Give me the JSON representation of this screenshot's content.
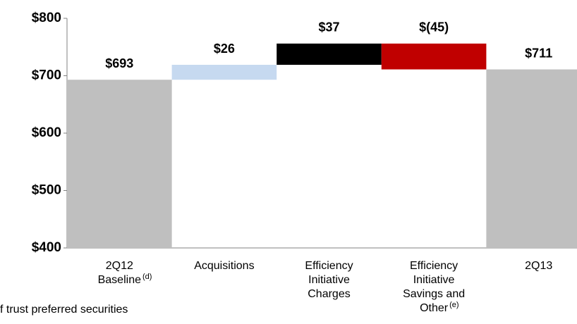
{
  "chart_data": {
    "type": "waterfall",
    "categories": [
      [
        "2Q12",
        "Baseline"
      ],
      [
        "Acquisitions"
      ],
      [
        "Efficiency",
        "Initiative",
        "Charges"
      ],
      [
        "Efficiency",
        "Initiative",
        "Savings and",
        "Other"
      ],
      [
        "2Q13"
      ]
    ],
    "category_notes": [
      "(d)",
      null,
      null,
      "(e)",
      null
    ],
    "values": [
      693,
      26,
      37,
      -45,
      711
    ],
    "value_labels": [
      "$693",
      "$26",
      "$37",
      "$(45)",
      "$711"
    ],
    "measures": [
      "absolute",
      "relative",
      "relative",
      "relative",
      "absolute"
    ],
    "colors": [
      "#bfbfbf",
      "#c6d9f0",
      "#000000",
      "#c00000",
      "#bfbfbf"
    ],
    "ylim": [
      400,
      800
    ],
    "yticks": [
      {
        "value": 400,
        "label": "$400"
      },
      {
        "value": 500,
        "label": "$500"
      },
      {
        "value": 600,
        "label": "$600"
      },
      {
        "value": 700,
        "label": "$700"
      },
      {
        "value": 800,
        "label": "$800"
      }
    ],
    "annotations": [
      "f trust preferred securities"
    ]
  }
}
